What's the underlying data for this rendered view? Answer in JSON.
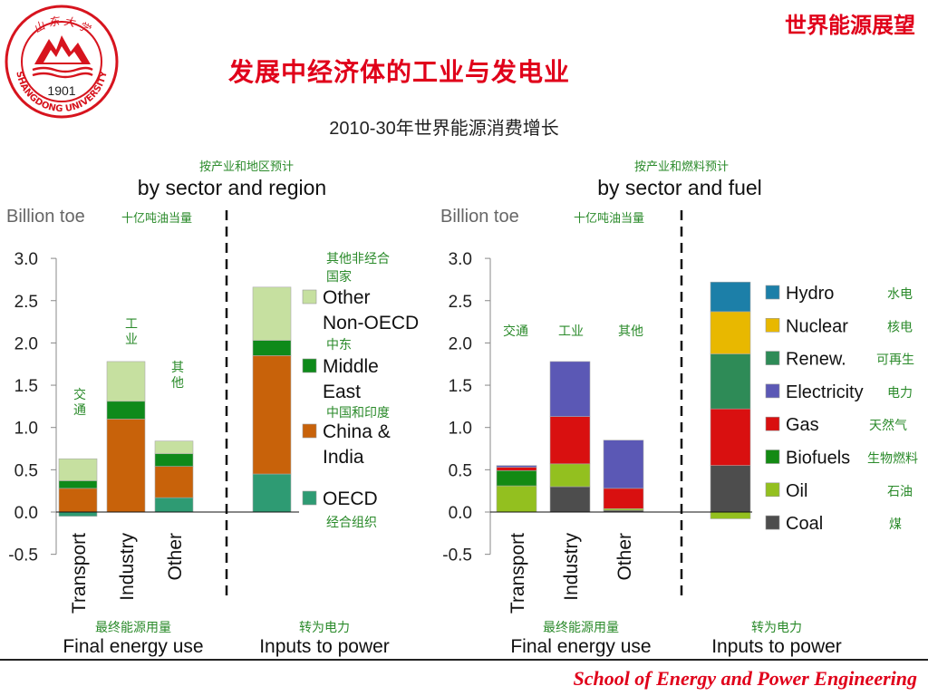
{
  "header": {
    "corner_title": "世界能源展望",
    "slide_title": "发展中经济体的工业与发电业",
    "chart_heading": "2010-30年世界能源消费增长"
  },
  "logo": {
    "year": "1901",
    "ring_text": "SHANGDONG UNIVERSITY",
    "top_text": "山 东 大 学",
    "color": "#d7141e"
  },
  "footer": {
    "text": "School of Energy and Power Engineering"
  },
  "colors": {
    "oecd": "#2e9b73",
    "china_india": "#c8620a",
    "middle_east": "#0e8a1a",
    "other_non_oecd": "#c6e0a0",
    "hydro": "#1c7fa8",
    "nuclear": "#e8b800",
    "renew": "#2e8b57",
    "electricity": "#5b58b5",
    "gas": "#d91010",
    "biofuels": "#138a13",
    "oil": "#93c01f",
    "coal": "#4d4d4d",
    "annotation_green": "#2a8a2a"
  },
  "chart_data": [
    {
      "type": "bar",
      "stacked": true,
      "subtitle_cn": "按产业和地区预计",
      "subtitle": "by sector and region",
      "ylabel": "Billion toe",
      "ylabel_cn": "十亿吨油当量",
      "ylim": [
        -0.5,
        3.0
      ],
      "yticks": [
        "3.0",
        "2.5",
        "2.0",
        "1.5",
        "1.0",
        "0.5",
        "0.0",
        "-0.5"
      ],
      "categories": [
        "Transport",
        "Industry",
        "Other",
        "Inputs to power"
      ],
      "category_labels_cn": [
        "交通",
        "工业",
        "其他"
      ],
      "group_labels": [
        {
          "cn": "最终能源用量",
          "en": "Final energy use"
        },
        {
          "cn": "转为电力",
          "en": "Inputs to power"
        }
      ],
      "series": [
        {
          "name": "OECD",
          "name_cn": "经合组织",
          "color_key": "oecd",
          "values": [
            -0.05,
            0.0,
            0.17,
            0.45
          ]
        },
        {
          "name": "China & India",
          "name_cn": "中国和印度",
          "color_key": "china_india",
          "values": [
            0.28,
            1.1,
            0.37,
            1.4
          ]
        },
        {
          "name": "Middle East",
          "name_cn": "中东",
          "color_key": "middle_east",
          "values": [
            0.09,
            0.21,
            0.15,
            0.18
          ]
        },
        {
          "name": "Other Non-OECD",
          "name_cn": "其他非经合国家",
          "color_key": "other_non_oecd",
          "values": [
            0.26,
            0.47,
            0.15,
            0.63
          ]
        }
      ]
    },
    {
      "type": "bar",
      "stacked": true,
      "subtitle_cn": "按产业和燃料预计",
      "subtitle": "by sector and fuel",
      "ylabel": "Billion toe",
      "ylabel_cn": "十亿吨油当量",
      "ylim": [
        -0.5,
        3.0
      ],
      "yticks": [
        "3.0",
        "2.5",
        "2.0",
        "1.5",
        "1.0",
        "0.5",
        "0.0",
        "-0.5"
      ],
      "categories": [
        "Transport",
        "Industry",
        "Other",
        "Inputs to power"
      ],
      "category_labels_cn": [
        "交通",
        "工业",
        "其他"
      ],
      "group_labels": [
        {
          "cn": "最终能源用量",
          "en": "Final energy use"
        },
        {
          "cn": "转为电力",
          "en": "Inputs to power"
        }
      ],
      "series": [
        {
          "name": "Coal",
          "name_cn": "煤",
          "color_key": "coal",
          "values": [
            0.0,
            0.3,
            0.02,
            0.55
          ]
        },
        {
          "name": "Oil",
          "name_cn": "石油",
          "color_key": "oil",
          "values": [
            0.31,
            0.27,
            0.02,
            -0.08
          ]
        },
        {
          "name": "Biofuels",
          "name_cn": "生物燃料",
          "color_key": "biofuels",
          "values": [
            0.18,
            0.0,
            0.0,
            0.0
          ]
        },
        {
          "name": "Gas",
          "name_cn": "天然气",
          "color_key": "gas",
          "values": [
            0.04,
            0.56,
            0.24,
            0.67
          ]
        },
        {
          "name": "Electricity",
          "name_cn": "电力",
          "color_key": "electricity",
          "values": [
            0.02,
            0.65,
            0.57,
            0.0
          ]
        },
        {
          "name": "Renew.",
          "name_cn": "可再生",
          "color_key": "renew",
          "values": [
            0.0,
            0.0,
            0.0,
            0.65
          ]
        },
        {
          "name": "Nuclear",
          "name_cn": "核电",
          "color_key": "nuclear",
          "values": [
            0.0,
            0.0,
            0.0,
            0.5
          ]
        },
        {
          "name": "Hydro",
          "name_cn": "水电",
          "color_key": "hydro",
          "values": [
            0.0,
            0.0,
            0.0,
            0.35
          ]
        }
      ]
    }
  ]
}
